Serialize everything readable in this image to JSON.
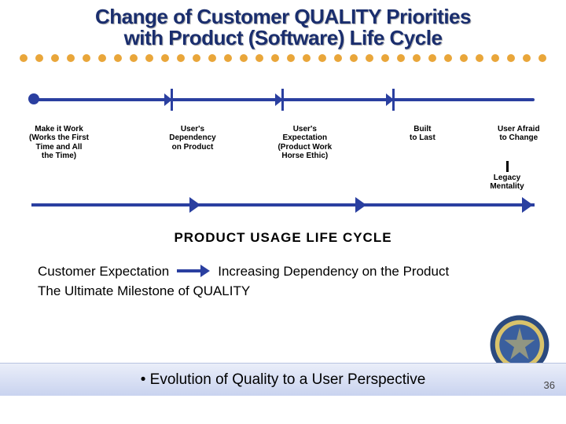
{
  "title": {
    "line1": "Change of Customer QUALITY Priorities",
    "line2": "with Product (Software) Life Cycle",
    "fontsize": 26,
    "color": "#1a2e6e"
  },
  "dots": {
    "count": 34,
    "color": "#e9a63a",
    "size": 10
  },
  "timeline": {
    "line_color": "#2a3fa0",
    "start_dot_color": "#2a3fa0",
    "tick_color": "#2a3fa0",
    "tick_positions_pct": [
      28,
      50,
      72
    ],
    "stages": [
      {
        "label": "Make it Work\n(Works the First\nTime and All\nthe Time)",
        "left_pct": 0
      },
      {
        "label": "User's\nDependency\non Product",
        "left_pct": 25
      },
      {
        "label": "User's\nExpectation\n(Product Work\nHorse Ethic)",
        "left_pct": 46
      },
      {
        "label": "Built\nto Last",
        "left_pct": 68
      },
      {
        "label": "User Afraid\nto Change",
        "left_pct": 86
      }
    ],
    "legacy_label": "Legacy\nMentality"
  },
  "arrow_row": {
    "color": "#2a3fa0",
    "arrow_positions_pct": [
      33,
      66,
      99
    ]
  },
  "cycle_title": {
    "text": "PRODUCT USAGE LIFE CYCLE",
    "fontsize": 17
  },
  "body": {
    "line1_left": "Customer Expectation",
    "line1_right": "Increasing Dependency on the Product",
    "line2": "The Ultimate Milestone of QUALITY",
    "arrow_color": "#2a3fa0"
  },
  "footer": {
    "bullet": "•",
    "text": "Evolution of Quality to a User Perspective"
  },
  "page_number": "36",
  "seal": {
    "outer_color": "#2b4a7f",
    "ring_color": "#d9c36b",
    "inner_color": "#3a5f9e"
  }
}
